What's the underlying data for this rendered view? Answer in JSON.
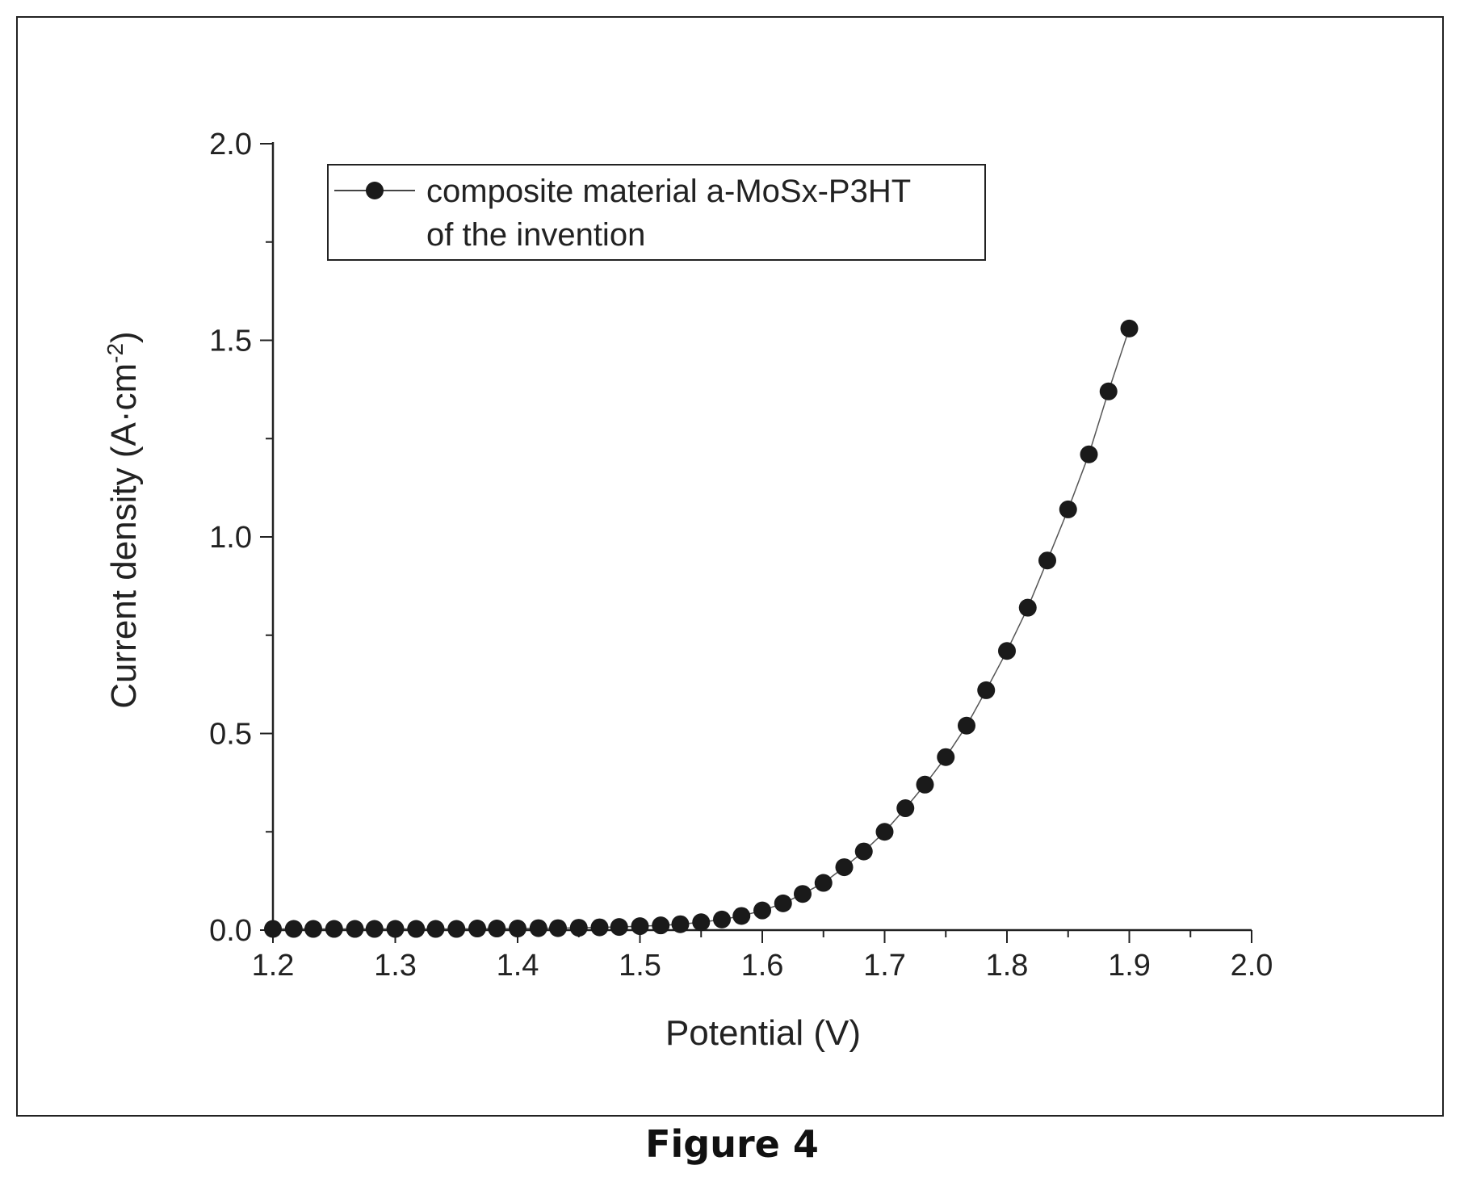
{
  "caption": "Figure 4",
  "chart_data": {
    "type": "scatter",
    "xlabel": "Potential (V)",
    "ylabel_main": "Current density (A·cm",
    "ylabel_sup": "-2",
    "ylabel_close": ")",
    "xlim": [
      1.2,
      2.0
    ],
    "ylim": [
      0.0,
      2.0
    ],
    "xticks": [
      "1.2",
      "1.3",
      "1.4",
      "1.5",
      "1.6",
      "1.7",
      "1.8",
      "1.9",
      "2.0"
    ],
    "yticks": [
      "0.0",
      "0.5",
      "1.0",
      "1.5",
      "2.0"
    ],
    "legend": {
      "line1": "composite material a-MoSx-P3HT",
      "line2": "of the invention",
      "placement": "top-left"
    },
    "marker_color": "#1a1a1a",
    "series": [
      {
        "name": "composite material a-MoSx-P3HT of the invention",
        "x": [
          1.2,
          1.217,
          1.233,
          1.25,
          1.267,
          1.283,
          1.3,
          1.317,
          1.333,
          1.35,
          1.367,
          1.383,
          1.4,
          1.417,
          1.433,
          1.45,
          1.467,
          1.483,
          1.5,
          1.517,
          1.533,
          1.55,
          1.567,
          1.583,
          1.6,
          1.617,
          1.633,
          1.65,
          1.667,
          1.683,
          1.7,
          1.717,
          1.733,
          1.75,
          1.767,
          1.783,
          1.8,
          1.817,
          1.833,
          1.85,
          1.867,
          1.883,
          1.9
        ],
        "y": [
          0.003,
          0.003,
          0.003,
          0.003,
          0.003,
          0.003,
          0.003,
          0.003,
          0.003,
          0.003,
          0.004,
          0.004,
          0.004,
          0.005,
          0.005,
          0.006,
          0.007,
          0.008,
          0.01,
          0.012,
          0.015,
          0.02,
          0.027,
          0.036,
          0.05,
          0.068,
          0.092,
          0.12,
          0.16,
          0.2,
          0.25,
          0.31,
          0.37,
          0.44,
          0.52,
          0.61,
          0.71,
          0.82,
          0.94,
          1.07,
          1.21,
          1.37,
          1.53
        ]
      }
    ]
  }
}
